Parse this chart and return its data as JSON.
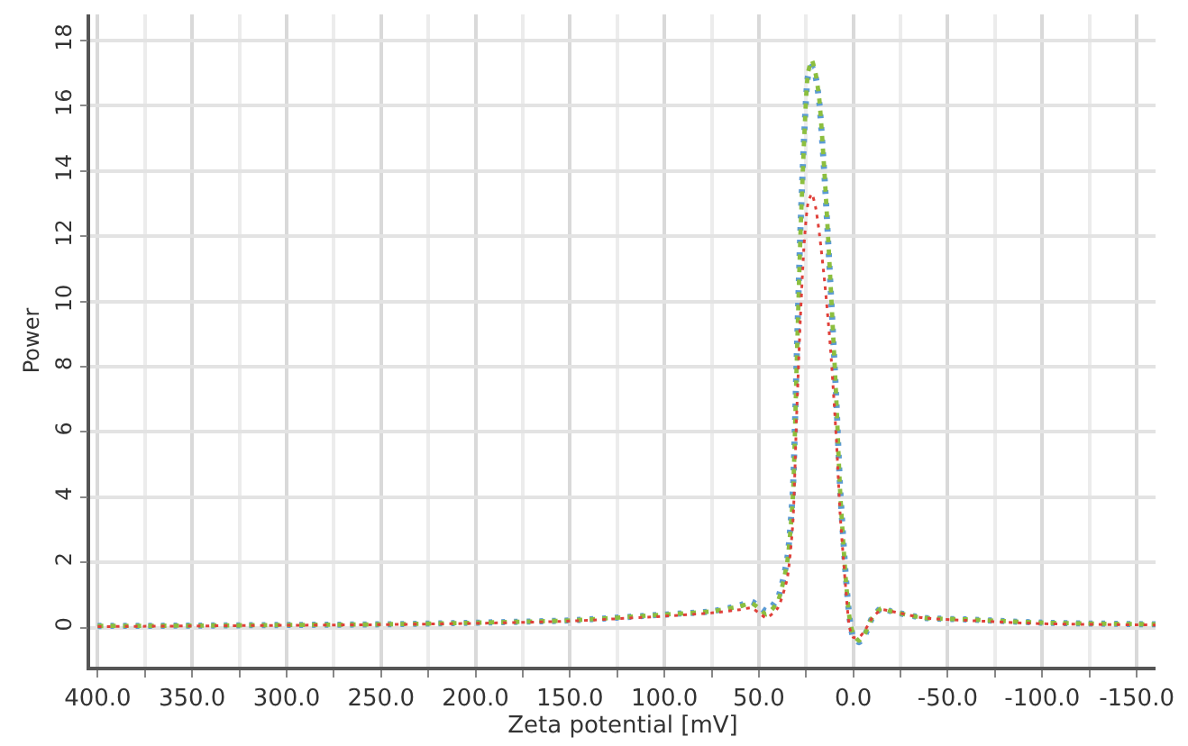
{
  "chart_data": {
    "type": "line",
    "xlabel": "Zeta potential [mV]",
    "ylabel": "Power",
    "x": [
      400,
      350,
      300,
      250,
      200,
      150,
      100,
      75,
      60,
      54,
      50,
      46,
      40,
      35,
      32,
      30,
      28,
      26,
      24,
      22,
      20,
      18,
      15,
      12,
      9,
      7,
      4,
      2,
      0,
      -3,
      -6,
      -10,
      -15,
      -20,
      -37,
      -60,
      -100,
      -160
    ],
    "series": [
      {
        "color": "#5b9bd5",
        "values": [
          0.05,
          0.06,
          0.08,
          0.1,
          0.15,
          0.22,
          0.4,
          0.5,
          0.68,
          0.8,
          0.65,
          0.5,
          0.9,
          2.1,
          4.2,
          8.2,
          12.2,
          15.1,
          16.9,
          17.2,
          16.9,
          16.1,
          13.6,
          10.4,
          7.0,
          4.3,
          1.6,
          0.3,
          -0.3,
          -0.45,
          -0.25,
          0.3,
          0.6,
          0.5,
          0.3,
          0.25,
          0.15,
          0.1
        ]
      },
      {
        "color": "#8cbf3f",
        "values": [
          0.05,
          0.06,
          0.08,
          0.1,
          0.15,
          0.22,
          0.4,
          0.5,
          0.65,
          0.75,
          0.6,
          0.4,
          0.8,
          2.0,
          4.0,
          8.0,
          12.0,
          15.0,
          17.0,
          17.4,
          17.0,
          16.2,
          13.7,
          10.5,
          7.0,
          4.2,
          1.5,
          0.3,
          -0.2,
          -0.4,
          -0.2,
          0.3,
          0.6,
          0.5,
          0.3,
          0.25,
          0.15,
          0.1
        ]
      },
      {
        "color": "#e0403a",
        "values": [
          0.03,
          0.05,
          0.07,
          0.09,
          0.13,
          0.2,
          0.35,
          0.45,
          0.55,
          0.6,
          0.45,
          0.3,
          0.6,
          1.5,
          3.2,
          6.5,
          9.5,
          11.8,
          13.0,
          13.3,
          12.9,
          12.1,
          10.5,
          8.5,
          5.8,
          3.5,
          1.2,
          0.0,
          -0.3,
          -0.3,
          -0.1,
          0.3,
          0.55,
          0.5,
          0.3,
          0.22,
          0.12,
          0.08
        ]
      }
    ],
    "xlim": [
      404,
      -160
    ],
    "ylim": [
      -1.2,
      18.8
    ],
    "xticks": [
      {
        "value": 400,
        "label": "400.0"
      },
      {
        "value": 350,
        "label": "350.0"
      },
      {
        "value": 300,
        "label": "300.0"
      },
      {
        "value": 250,
        "label": "250.0"
      },
      {
        "value": 200,
        "label": "200.0"
      },
      {
        "value": 150,
        "label": "150.0"
      },
      {
        "value": 100,
        "label": "100.0"
      },
      {
        "value": 50,
        "label": "50.0"
      },
      {
        "value": 0,
        "label": "0.0"
      },
      {
        "value": -50,
        "label": "-50.0"
      },
      {
        "value": -100,
        "label": "-100.0"
      },
      {
        "value": -150,
        "label": "-150.0"
      }
    ],
    "yticks": [
      0,
      2,
      4,
      6,
      8,
      10,
      12,
      14,
      16,
      18
    ],
    "grid": true,
    "marker": "none",
    "line_style": "dotted"
  }
}
